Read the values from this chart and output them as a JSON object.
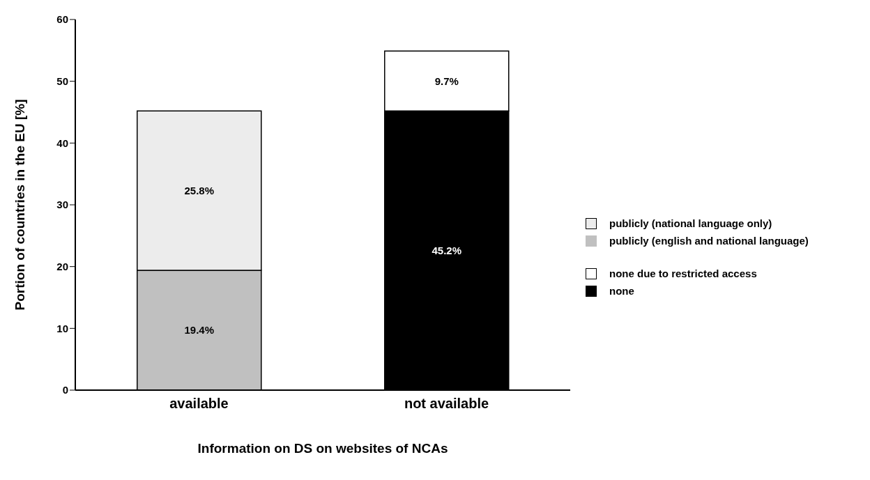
{
  "chart_data": {
    "type": "bar",
    "stacked": true,
    "xlabel": "Information on DS on websites of NCAs",
    "ylabel": "Portion of countries in the EU [%]",
    "categories": [
      "available",
      "not available"
    ],
    "ylim": [
      0,
      60
    ],
    "yticks": [
      0,
      10,
      20,
      30,
      40,
      50,
      60
    ],
    "legend": "right",
    "series": [
      {
        "name": "publicly (english and national language)",
        "color": "#c0c0c0",
        "values": [
          19.4,
          null
        ],
        "value_labels": [
          "19.4%",
          null
        ]
      },
      {
        "name": "none",
        "color": "#000000",
        "values": [
          null,
          45.2
        ],
        "value_labels": [
          null,
          "45.2%"
        ]
      },
      {
        "name": "publicly (national language only)",
        "color": "#ececec",
        "values": [
          25.8,
          null
        ],
        "value_labels": [
          "25.8%",
          null
        ]
      },
      {
        "name": "none due to restricted access",
        "color": "#ffffff",
        "values": [
          null,
          9.7
        ],
        "value_labels": [
          null,
          "9.7%"
        ]
      }
    ]
  }
}
